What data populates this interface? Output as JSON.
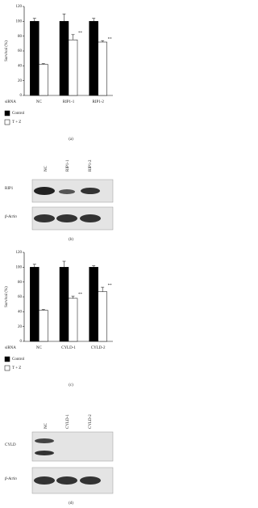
{
  "chart_data": [
    {
      "type": "bar",
      "ylabel": "Survival (%)",
      "xlabel": "siRNA",
      "caption": "(a)",
      "categories": [
        "NC",
        "RIP1-1",
        "RIP1-2"
      ],
      "series": [
        {
          "name": "Control",
          "color": "#000000",
          "values": [
            100,
            100,
            100
          ],
          "errors": [
            4,
            10,
            4
          ],
          "annotations": [
            null,
            null,
            null
          ]
        },
        {
          "name": "T + Z",
          "color": "#ffffff",
          "values": [
            42,
            75,
            72
          ],
          "errors": [
            1,
            7,
            2
          ],
          "annotations": [
            null,
            "**",
            "**"
          ]
        }
      ],
      "ylim": [
        0,
        120
      ],
      "yticks": [
        0,
        20,
        40,
        60,
        80,
        100,
        120
      ]
    },
    {
      "type": "bar",
      "ylabel": "Survival (%)",
      "xlabel": "siRNA",
      "caption": "(c)",
      "categories": [
        "NC",
        "CYLD-1",
        "CYLD-2"
      ],
      "series": [
        {
          "name": "Control",
          "color": "#000000",
          "values": [
            100,
            100,
            100
          ],
          "errors": [
            4,
            8,
            2
          ],
          "annotations": [
            null,
            null,
            null
          ]
        },
        {
          "name": "T + Z",
          "color": "#ffffff",
          "values": [
            42,
            58,
            67
          ],
          "errors": [
            1,
            3,
            6
          ],
          "annotations": [
            null,
            "**",
            "**"
          ]
        }
      ],
      "ylim": [
        0,
        120
      ],
      "yticks": [
        0,
        20,
        40,
        60,
        80,
        100,
        120
      ]
    }
  ],
  "blots": [
    {
      "lanes": [
        "NC",
        "RIP1-1",
        "RIP1-2"
      ],
      "rows": [
        "RIP1",
        "β-Actin"
      ],
      "caption": "(b)"
    },
    {
      "lanes": [
        "NC",
        "CYLD-1",
        "CYLD-2"
      ],
      "rows": [
        "CYLD",
        "β-Actin"
      ],
      "caption": "(d)"
    }
  ]
}
